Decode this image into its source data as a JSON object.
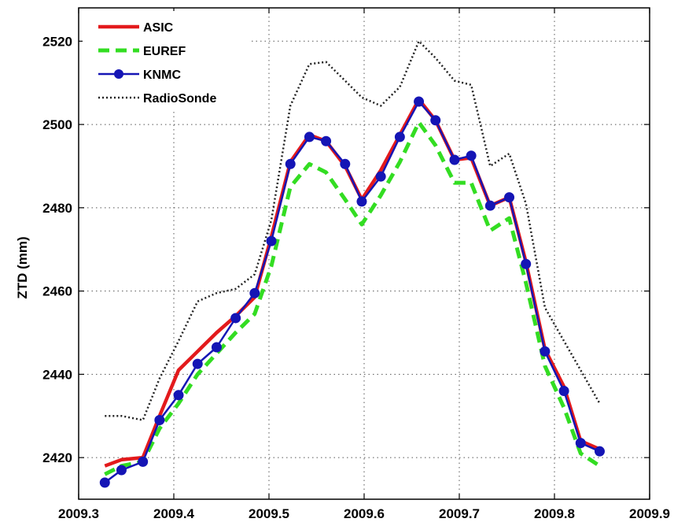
{
  "chart_data": {
    "type": "line",
    "title": "",
    "xlabel": "",
    "ylabel": "ZTD (mm)",
    "xlim": [
      2009.3,
      2009.9
    ],
    "ylim": [
      2410,
      2528
    ],
    "xticks": [
      2009.3,
      2009.4,
      2009.5,
      2009.6,
      2009.7,
      2009.8,
      2009.9
    ],
    "xtick_labels": [
      "2009.3",
      "2009.4",
      "2009.5",
      "2009.6",
      "2009.7",
      "2009.8",
      "2009.9"
    ],
    "yticks": [
      2420,
      2440,
      2460,
      2480,
      2500,
      2520
    ],
    "ytick_labels": [
      "2420",
      "2440",
      "2460",
      "2480",
      "2500",
      "2520"
    ],
    "grid": true,
    "legend_position": "top-left",
    "series": [
      {
        "name": "ASIC",
        "color": "#e31a1c",
        "style": "solid",
        "x": [
          2009.3275,
          2009.345,
          2009.3675,
          2009.385,
          2009.405,
          2009.425,
          2009.445,
          2009.465,
          2009.485,
          2009.5025,
          2009.5225,
          2009.5425,
          2009.56,
          2009.58,
          2009.5975,
          2009.6175,
          2009.6375,
          2009.6575,
          2009.675,
          2009.695,
          2009.7125,
          2009.7325,
          2009.7525,
          2009.77,
          2009.79,
          2009.81,
          2009.8275,
          2009.8475
        ],
        "values": [
          2418,
          2419.5,
          2420,
          2430,
          2441,
          2445.5,
          2450,
          2454,
          2458.5,
          2473,
          2491,
          2497.5,
          2496,
          2490,
          2482,
          2489,
          2497.5,
          2506,
          2501,
          2491.5,
          2492,
          2480.5,
          2482.5,
          2467,
          2446,
          2437,
          2424,
          2422
        ]
      },
      {
        "name": "EUREF",
        "color": "#33dd22",
        "style": "dashed",
        "x": [
          2009.3275,
          2009.345,
          2009.3675,
          2009.385,
          2009.405,
          2009.425,
          2009.445,
          2009.465,
          2009.485,
          2009.5025,
          2009.5225,
          2009.5425,
          2009.56,
          2009.58,
          2009.5975,
          2009.6175,
          2009.6375,
          2009.6575,
          2009.675,
          2009.695,
          2009.7125,
          2009.7325,
          2009.7525,
          2009.77,
          2009.79,
          2009.81,
          2009.8275,
          2009.8475
        ],
        "values": [
          2416,
          2418,
          2419,
          2427,
          2433,
          2440,
          2445,
          2450,
          2454.5,
          2466,
          2485,
          2490.5,
          2488.5,
          2482,
          2476,
          2483,
          2491,
          2500.5,
          2495,
          2486,
          2486,
          2474.5,
          2477.5,
          2462,
          2442,
          2432,
          2421,
          2418
        ]
      },
      {
        "name": "KNMC",
        "color": "#1515b5",
        "style": "solid-markers",
        "x": [
          2009.3275,
          2009.345,
          2009.3675,
          2009.385,
          2009.405,
          2009.425,
          2009.445,
          2009.465,
          2009.485,
          2009.5025,
          2009.5225,
          2009.5425,
          2009.56,
          2009.58,
          2009.5975,
          2009.6175,
          2009.6375,
          2009.6575,
          2009.675,
          2009.695,
          2009.7125,
          2009.7325,
          2009.7525,
          2009.77,
          2009.79,
          2009.81,
          2009.8275,
          2009.8475
        ],
        "values": [
          2414,
          2417,
          2419,
          2429,
          2435,
          2442.5,
          2446.5,
          2453.5,
          2459.5,
          2472,
          2490.5,
          2497,
          2496,
          2490.5,
          2481.5,
          2487.5,
          2497,
          2505.5,
          2501,
          2491.5,
          2492.5,
          2480.5,
          2482.5,
          2466.5,
          2445.5,
          2436,
          2423.5,
          2421.5
        ]
      },
      {
        "name": "RadioSonde",
        "color": "#222222",
        "style": "dotted",
        "x": [
          2009.3275,
          2009.345,
          2009.3675,
          2009.385,
          2009.405,
          2009.425,
          2009.445,
          2009.465,
          2009.485,
          2009.5025,
          2009.5225,
          2009.5425,
          2009.56,
          2009.58,
          2009.5975,
          2009.6175,
          2009.6375,
          2009.6575,
          2009.675,
          2009.695,
          2009.7125,
          2009.7325,
          2009.7525,
          2009.77,
          2009.79,
          2009.81,
          2009.8275,
          2009.8475
        ],
        "values": [
          2430,
          2430,
          2429,
          2439,
          2448,
          2457.5,
          2459.5,
          2460.5,
          2464,
          2477,
          2504.5,
          2514.5,
          2515,
          2510.5,
          2506.5,
          2504.5,
          2509,
          2520,
          2516,
          2510.5,
          2509.5,
          2490,
          2493,
          2481,
          2456,
          2448,
          2441,
          2433
        ]
      }
    ]
  }
}
